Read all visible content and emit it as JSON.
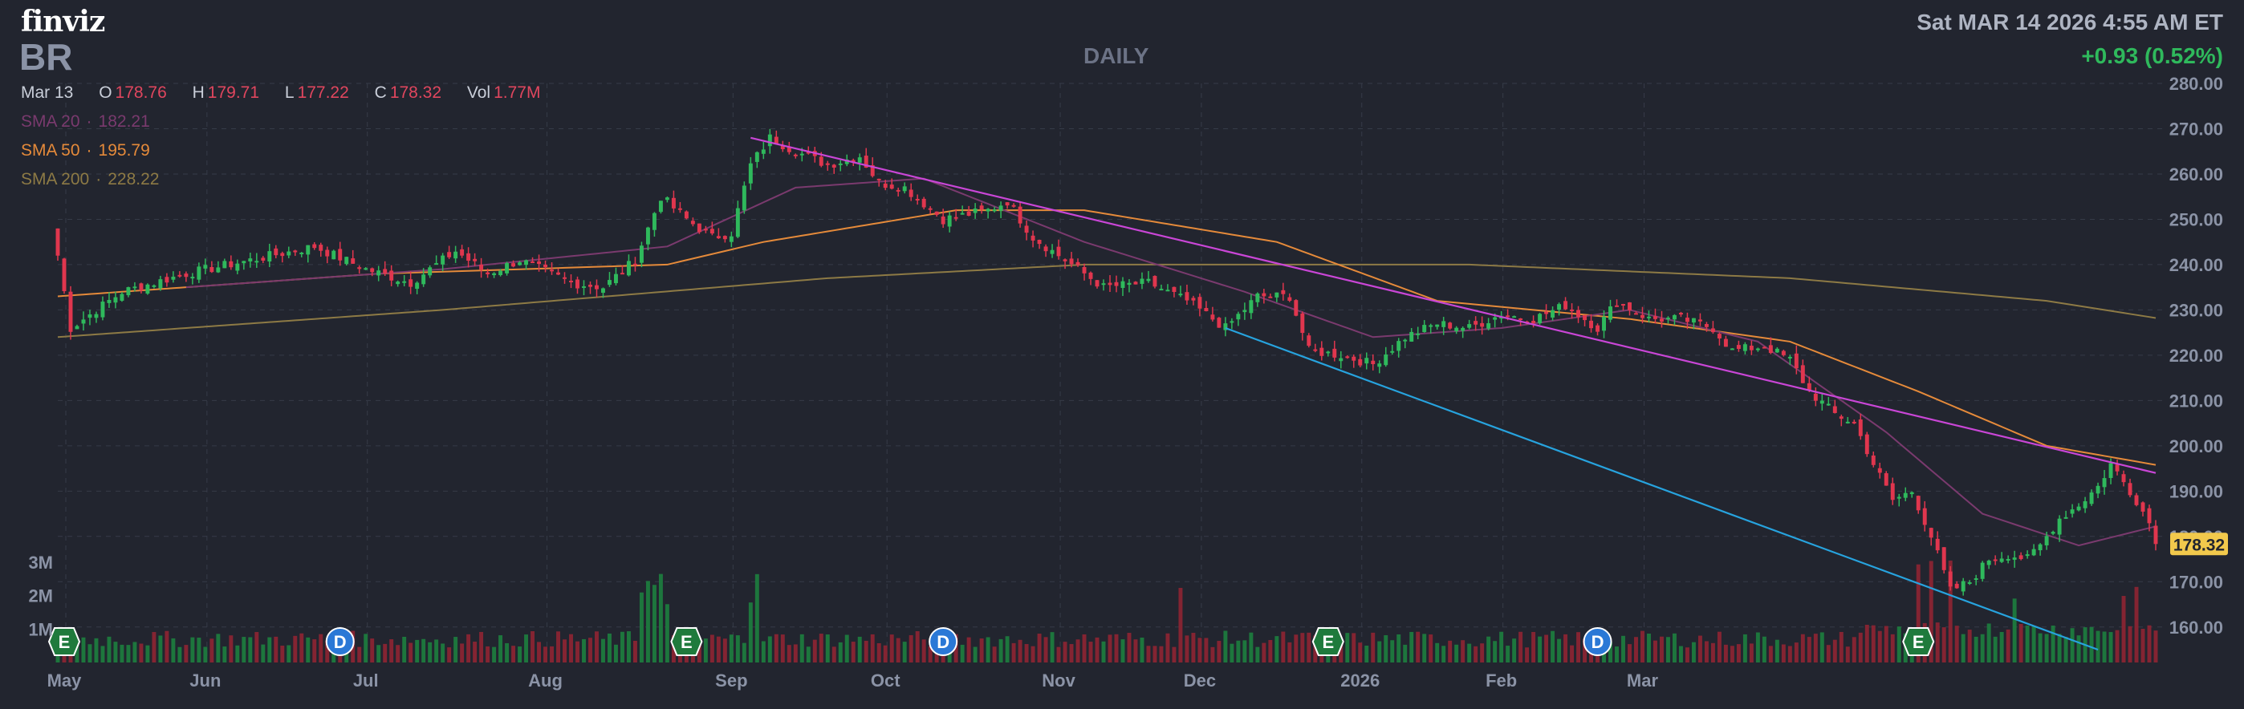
{
  "header": {
    "logo": "finviz",
    "ticker": "BR",
    "timeframe": "DAILY",
    "datetime": "Sat MAR 14 2026 4:55 AM ET",
    "change": "+0.93 (0.52%)"
  },
  "ohlc": {
    "date": "Mar 13",
    "open_label": "O",
    "open": "178.76",
    "high_label": "H",
    "high": "179.71",
    "low_label": "L",
    "low": "177.22",
    "close_label": "C",
    "close": "178.32",
    "volume_label": "Vol",
    "volume": "1.77M"
  },
  "indicators": [
    {
      "label": "SMA 20",
      "value": "182.21",
      "color": "#7a3a6e"
    },
    {
      "label": "SMA 50",
      "value": "195.79",
      "color": "#e58a3a"
    },
    {
      "label": "SMA 200",
      "value": "228.22",
      "color": "#8d7a45"
    }
  ],
  "colors": {
    "background": "#22252f",
    "up": "#2fb95c",
    "down": "#e0364e",
    "grid": "#363b48",
    "axis_text": "#8b93a6",
    "upper_trendline": "#c946d6",
    "lower_trendline": "#27a3de",
    "price_tag": "#f2c94c",
    "earnings_badge": "#1f7a3c",
    "dividend_badge": "#2a78d6"
  },
  "chart_data": {
    "type": "candlestick",
    "y_axis": {
      "min": 155,
      "max": 280,
      "ticks": [
        "280.00",
        "270.00",
        "260.00",
        "250.00",
        "240.00",
        "230.00",
        "220.00",
        "210.00",
        "200.00",
        "190.00",
        "180.00",
        "170.00",
        "160.00"
      ]
    },
    "x_axis": {
      "labels": [
        "May",
        "Jun",
        "Jul",
        "Aug",
        "Sep",
        "Oct",
        "Nov",
        "Dec",
        "2026",
        "Feb",
        "Mar"
      ]
    },
    "volume_axis": {
      "labels": [
        "3M",
        "2M",
        "1M"
      ],
      "max_millions": 3.6
    },
    "last_price": "178.32",
    "close_path": [
      {
        "d": 0,
        "c": 242
      },
      {
        "d": 2,
        "c": 226
      },
      {
        "d": 10,
        "c": 234
      },
      {
        "d": 20,
        "c": 238
      },
      {
        "d": 30,
        "c": 241
      },
      {
        "d": 40,
        "c": 244
      },
      {
        "d": 48,
        "c": 239
      },
      {
        "d": 55,
        "c": 236
      },
      {
        "d": 62,
        "c": 243
      },
      {
        "d": 67,
        "c": 238
      },
      {
        "d": 72,
        "c": 241
      },
      {
        "d": 80,
        "c": 236
      },
      {
        "d": 85,
        "c": 235
      },
      {
        "d": 90,
        "c": 241
      },
      {
        "d": 94,
        "c": 255
      },
      {
        "d": 98,
        "c": 250
      },
      {
        "d": 102,
        "c": 246
      },
      {
        "d": 105,
        "c": 247
      },
      {
        "d": 108,
        "c": 262
      },
      {
        "d": 111,
        "c": 268
      },
      {
        "d": 115,
        "c": 265
      },
      {
        "d": 120,
        "c": 262
      },
      {
        "d": 125,
        "c": 264
      },
      {
        "d": 128,
        "c": 258
      },
      {
        "d": 132,
        "c": 257
      },
      {
        "d": 138,
        "c": 250
      },
      {
        "d": 145,
        "c": 252
      },
      {
        "d": 148,
        "c": 254
      },
      {
        "d": 152,
        "c": 246
      },
      {
        "d": 158,
        "c": 240
      },
      {
        "d": 163,
        "c": 235
      },
      {
        "d": 170,
        "c": 236
      },
      {
        "d": 176,
        "c": 232
      },
      {
        "d": 182,
        "c": 226
      },
      {
        "d": 187,
        "c": 233
      },
      {
        "d": 192,
        "c": 233
      },
      {
        "d": 195,
        "c": 221
      },
      {
        "d": 200,
        "c": 220
      },
      {
        "d": 205,
        "c": 218
      },
      {
        "d": 210,
        "c": 224
      },
      {
        "d": 215,
        "c": 227
      },
      {
        "d": 220,
        "c": 226
      },
      {
        "d": 225,
        "c": 229
      },
      {
        "d": 230,
        "c": 228
      },
      {
        "d": 235,
        "c": 231
      },
      {
        "d": 240,
        "c": 226
      },
      {
        "d": 243,
        "c": 232
      },
      {
        "d": 248,
        "c": 228
      },
      {
        "d": 253,
        "c": 228
      },
      {
        "d": 258,
        "c": 226
      },
      {
        "d": 261,
        "c": 221
      },
      {
        "d": 266,
        "c": 222
      },
      {
        "d": 270,
        "c": 219
      },
      {
        "d": 273,
        "c": 212
      },
      {
        "d": 277,
        "c": 207
      },
      {
        "d": 280,
        "c": 205
      },
      {
        "d": 283,
        "c": 196
      },
      {
        "d": 286,
        "c": 188
      },
      {
        "d": 289,
        "c": 190
      },
      {
        "d": 292,
        "c": 180
      },
      {
        "d": 295,
        "c": 168
      },
      {
        "d": 298,
        "c": 170
      },
      {
        "d": 301,
        "c": 175
      },
      {
        "d": 304,
        "c": 176
      },
      {
        "d": 307,
        "c": 175
      },
      {
        "d": 309,
        "c": 178
      },
      {
        "d": 312,
        "c": 184
      },
      {
        "d": 315,
        "c": 187
      },
      {
        "d": 318,
        "c": 191
      },
      {
        "d": 320,
        "c": 196
      },
      {
        "d": 322,
        "c": 192
      },
      {
        "d": 324,
        "c": 188
      },
      {
        "d": 326,
        "c": 183
      },
      {
        "d": 327,
        "c": 178.32
      }
    ],
    "sma20_path": [
      {
        "d": 20,
        "c": 235
      },
      {
        "d": 60,
        "c": 239
      },
      {
        "d": 95,
        "c": 244
      },
      {
        "d": 115,
        "c": 257
      },
      {
        "d": 135,
        "c": 259
      },
      {
        "d": 160,
        "c": 245
      },
      {
        "d": 185,
        "c": 234
      },
      {
        "d": 205,
        "c": 224
      },
      {
        "d": 225,
        "c": 226
      },
      {
        "d": 245,
        "c": 230
      },
      {
        "d": 265,
        "c": 223
      },
      {
        "d": 285,
        "c": 203
      },
      {
        "d": 300,
        "c": 185
      },
      {
        "d": 315,
        "c": 178
      },
      {
        "d": 327,
        "c": 182.21
      }
    ],
    "sma50_path": [
      {
        "d": 0,
        "c": 233
      },
      {
        "d": 50,
        "c": 238
      },
      {
        "d": 95,
        "c": 240
      },
      {
        "d": 110,
        "c": 245
      },
      {
        "d": 140,
        "c": 252
      },
      {
        "d": 160,
        "c": 252
      },
      {
        "d": 190,
        "c": 245
      },
      {
        "d": 215,
        "c": 232
      },
      {
        "d": 245,
        "c": 228
      },
      {
        "d": 270,
        "c": 223
      },
      {
        "d": 290,
        "c": 212
      },
      {
        "d": 310,
        "c": 200
      },
      {
        "d": 327,
        "c": 195.79
      }
    ],
    "sma200_path": [
      {
        "d": 0,
        "c": 224
      },
      {
        "d": 60,
        "c": 230
      },
      {
        "d": 120,
        "c": 237
      },
      {
        "d": 160,
        "c": 240
      },
      {
        "d": 220,
        "c": 240
      },
      {
        "d": 270,
        "c": 237
      },
      {
        "d": 310,
        "c": 232
      },
      {
        "d": 327,
        "c": 228.22
      }
    ],
    "trendlines": [
      {
        "name": "upper",
        "from": {
          "d": 108,
          "c": 268
        },
        "to": {
          "d": 327,
          "c": 194
        }
      },
      {
        "name": "lower",
        "from": {
          "d": 182,
          "c": 226
        },
        "to": {
          "d": 318,
          "c": 155
        }
      }
    ],
    "events": [
      {
        "type": "E",
        "d": 1
      },
      {
        "type": "D",
        "d": 44
      },
      {
        "type": "E",
        "d": 98
      },
      {
        "type": "D",
        "d": 138
      },
      {
        "type": "E",
        "d": 198
      },
      {
        "type": "D",
        "d": 240
      },
      {
        "type": "E",
        "d": 290
      }
    ]
  }
}
